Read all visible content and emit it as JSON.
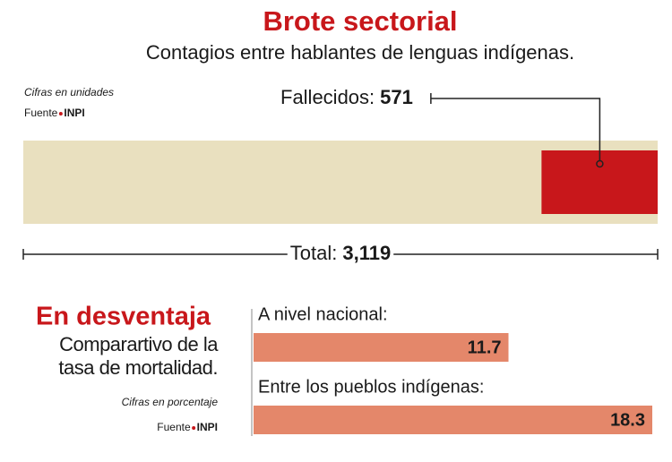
{
  "chart_data": [
    {
      "type": "part-of-whole",
      "title": "Brote sectorial",
      "subtitle": "Contagios entre hablantes de lenguas indígenas.",
      "note": "Cifras en unidades",
      "source_label": "Fuente",
      "source": "INPI",
      "categories": [
        "Total:",
        "Fallecidos:"
      ],
      "values": [
        3119,
        571
      ],
      "value_labels": [
        "3,119",
        "571"
      ],
      "colors": [
        "#e9e0bf",
        "#c8171b"
      ]
    },
    {
      "type": "hbar",
      "title": "En desventaja",
      "subtitle": "Comparartivo de la tasa de mortalidad.",
      "note": "Cifras en porcentaje",
      "source_label": "Fuente",
      "source": "INPI",
      "categories": [
        "A nivel nacional:",
        "Entre los pueblos indígenas:"
      ],
      "values": [
        11.7,
        18.3
      ],
      "color": "#e4876a"
    }
  ]
}
